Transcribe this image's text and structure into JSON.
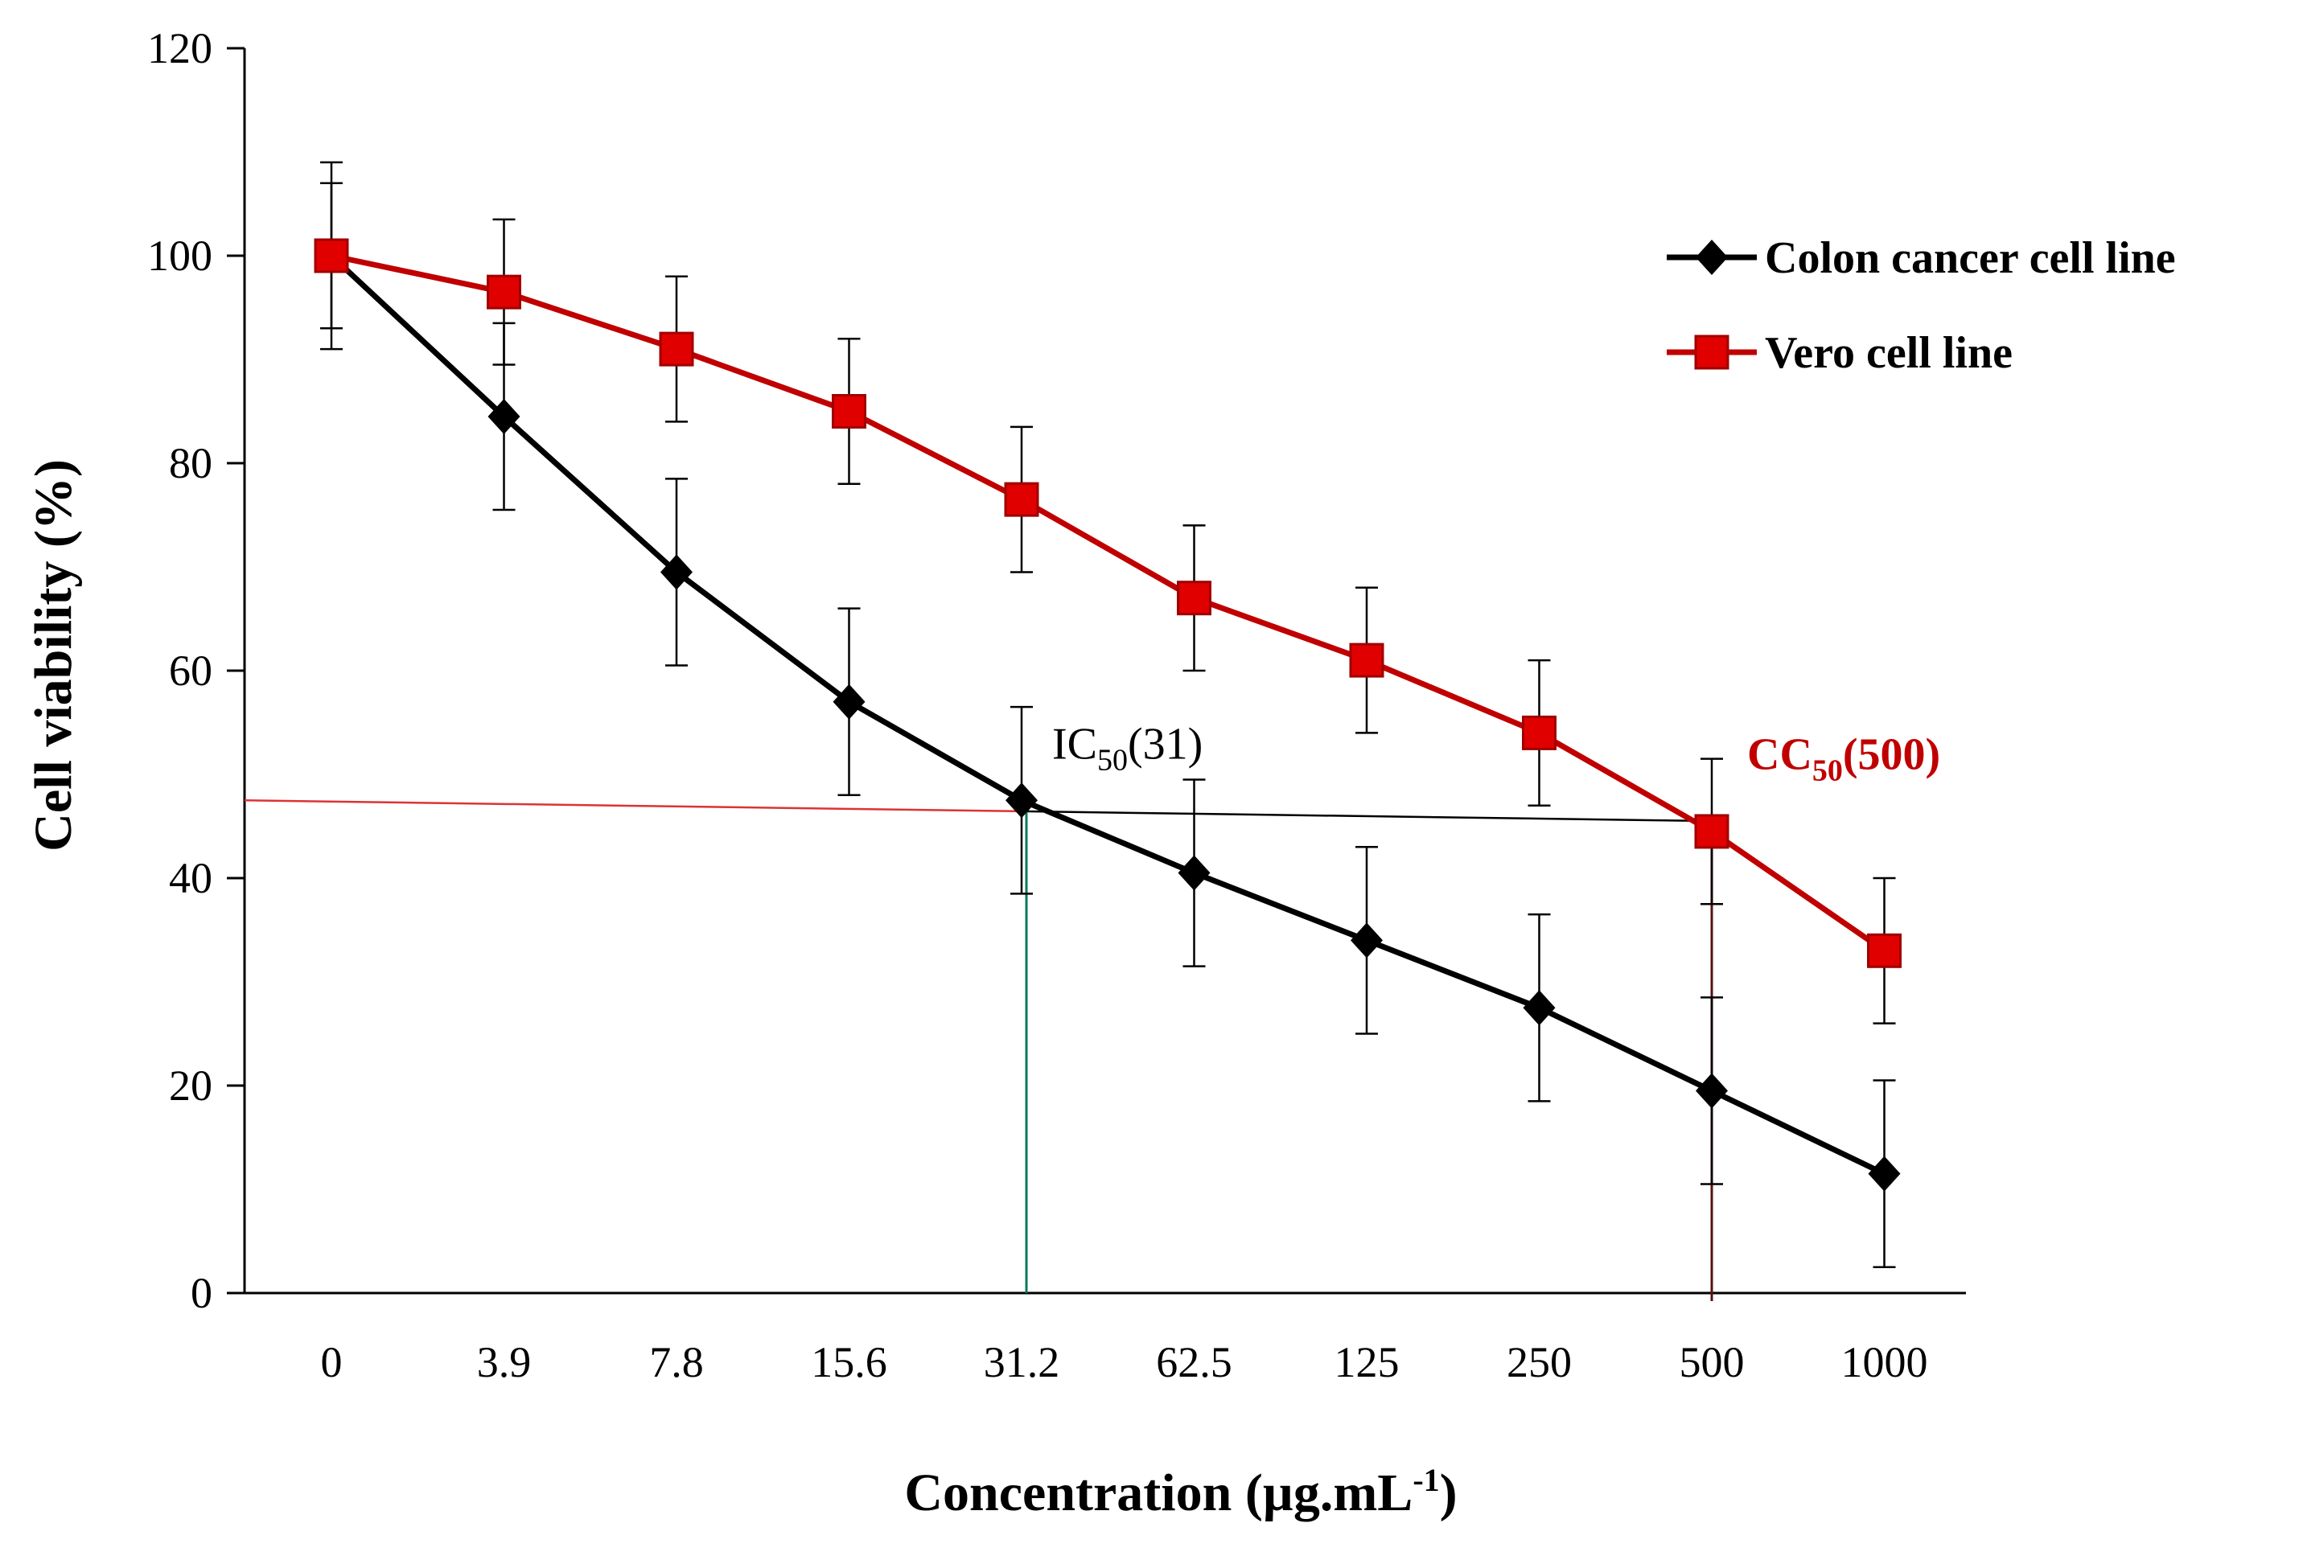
{
  "chart_data": {
    "type": "line",
    "xlabel": "Concentration (µg.mL",
    "xlabel_sup": "-1",
    "xlabel_close": ")",
    "ylabel": "Cell viability (%)",
    "ylim": [
      0,
      120
    ],
    "yticks": [
      0,
      20,
      40,
      60,
      80,
      100,
      120
    ],
    "categories": [
      "0",
      "3.9",
      "7.8",
      "15.6",
      "31.2",
      "62.5",
      "125",
      "250",
      "500",
      "1000"
    ],
    "grid": false,
    "legend_position": "top-right",
    "series": [
      {
        "name": "Colon cancer cell line",
        "color": "#000000",
        "marker": "diamond",
        "values": [
          100,
          84.5,
          69.5,
          57,
          47.5,
          40.5,
          34,
          27.5,
          19.5,
          11.5
        ],
        "errors": [
          9,
          9,
          9,
          9,
          9,
          9,
          9,
          9,
          9,
          9
        ]
      },
      {
        "name": "Vero cell line",
        "color": "#c00000",
        "marker": "square",
        "values": [
          100,
          96.5,
          91,
          85,
          76.5,
          67,
          61,
          54,
          44.5,
          33
        ],
        "errors": [
          7,
          7,
          7,
          7,
          7,
          7,
          7,
          7,
          7,
          7
        ]
      }
    ],
    "reference_lines": {
      "horizontal": {
        "y_start": 47.5,
        "y_end": 45.5
      },
      "ic50_vertical_at_category": "31.2",
      "cc50_vertical_at_category": "500"
    },
    "annotations": [
      {
        "prefix": "IC",
        "sub": "50",
        "suffix": "(31)",
        "color": "#000000",
        "at_category": "31.2",
        "y": 51.5
      },
      {
        "prefix": "CC",
        "sub": "50",
        "suffix": "(500)",
        "color": "#c00000",
        "at_category": "500",
        "y": 50.5
      }
    ]
  }
}
